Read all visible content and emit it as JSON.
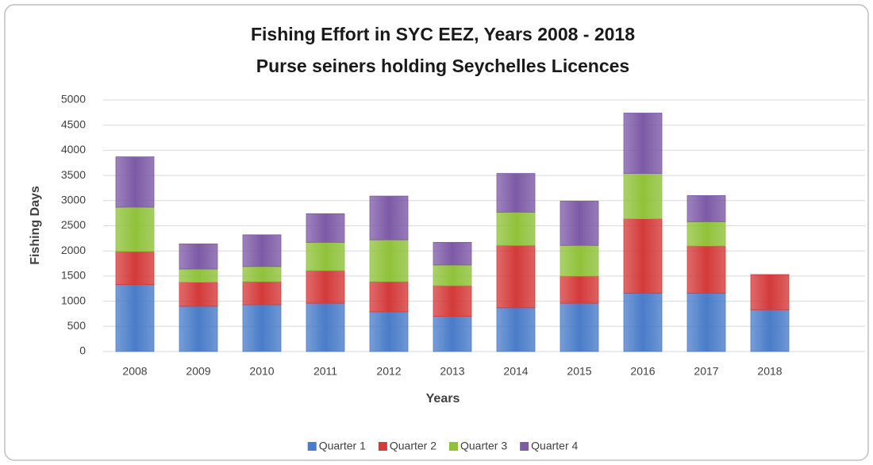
{
  "chart_data": {
    "type": "stacked-bar",
    "title": "Fishing Effort in SYC EEZ, Years 2008 - 2018",
    "subtitle": "Purse seiners holding Seychelles Licences",
    "x_label": "Years",
    "y_label": "Fishing Days",
    "categories": [
      "2008",
      "2009",
      "2010",
      "2011",
      "2012",
      "2013",
      "2014",
      "2015",
      "2016",
      "2017",
      "2018",
      null
    ],
    "series": [
      {
        "name": "Quarter 1",
        "color": "#4a7cc9",
        "values": [
          1330,
          900,
          930,
          960,
          790,
          700,
          870,
          960,
          1160,
          1160,
          830,
          null
        ]
      },
      {
        "name": "Quarter 2",
        "color": "#d43a3a",
        "values": [
          660,
          480,
          460,
          650,
          600,
          610,
          1240,
          540,
          1480,
          940,
          700,
          null
        ]
      },
      {
        "name": "Quarter 3",
        "color": "#8fc23a",
        "values": [
          880,
          260,
          300,
          560,
          830,
          410,
          660,
          610,
          900,
          480,
          null,
          null
        ]
      },
      {
        "name": "Quarter 4",
        "color": "#7d5aa6",
        "values": [
          1000,
          500,
          630,
          570,
          870,
          450,
          770,
          880,
          1200,
          520,
          null,
          null
        ]
      }
    ],
    "ylim": [
      0,
      5000
    ],
    "yticks": [
      0,
      500,
      1000,
      1500,
      2000,
      2500,
      3000,
      3500,
      4000,
      4500,
      5000
    ],
    "grid": true,
    "legend": "bottom"
  }
}
